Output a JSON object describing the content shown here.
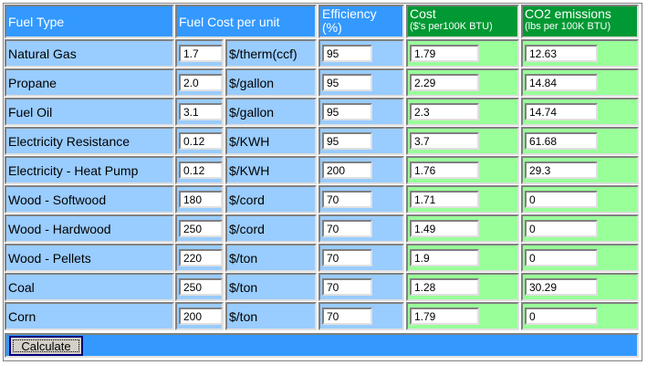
{
  "table": {
    "header": {
      "fuel_type": "Fuel Type",
      "fuel_cost": "Fuel Cost per unit",
      "efficiency": "Efficiency",
      "efficiency_unit": "(%)",
      "cost": "Cost",
      "cost_unit": "($'s per100K BTU)",
      "co2": "CO2 emissions",
      "co2_unit": "(lbs per 100K BTU)"
    },
    "rows": [
      [
        "Natural Gas",
        "1.7",
        "$/therm(ccf)",
        "95",
        "1.79",
        "12.63"
      ],
      [
        "Propane",
        "2.0",
        "$/gallon",
        "95",
        "2.29",
        "14.84"
      ],
      [
        "Fuel Oil",
        "3.1",
        "$/gallon",
        "95",
        "2.3",
        "14.74"
      ],
      [
        "Electricity Resistance",
        "0.12",
        "$/KWH",
        "95",
        "3.7",
        "61.68"
      ],
      [
        "Electricity - Heat Pump",
        "0.12",
        "$/KWH",
        "200",
        "1.76",
        "29.3"
      ],
      [
        "Wood - Softwood",
        "180",
        "$/cord",
        "70",
        "1.71",
        "0"
      ],
      [
        "Wood - Hardwood",
        "250",
        "$/cord",
        "70",
        "1.49",
        "0"
      ],
      [
        "Wood - Pellets",
        "220",
        "$/ton",
        "70",
        "1.9",
        "0"
      ],
      [
        "Coal",
        "250",
        "$/ton",
        "70",
        "1.28",
        "30.29"
      ],
      [
        "Corn",
        "200",
        "$/ton",
        "70",
        "1.79",
        "0"
      ]
    ],
    "button": "Calculate"
  }
}
